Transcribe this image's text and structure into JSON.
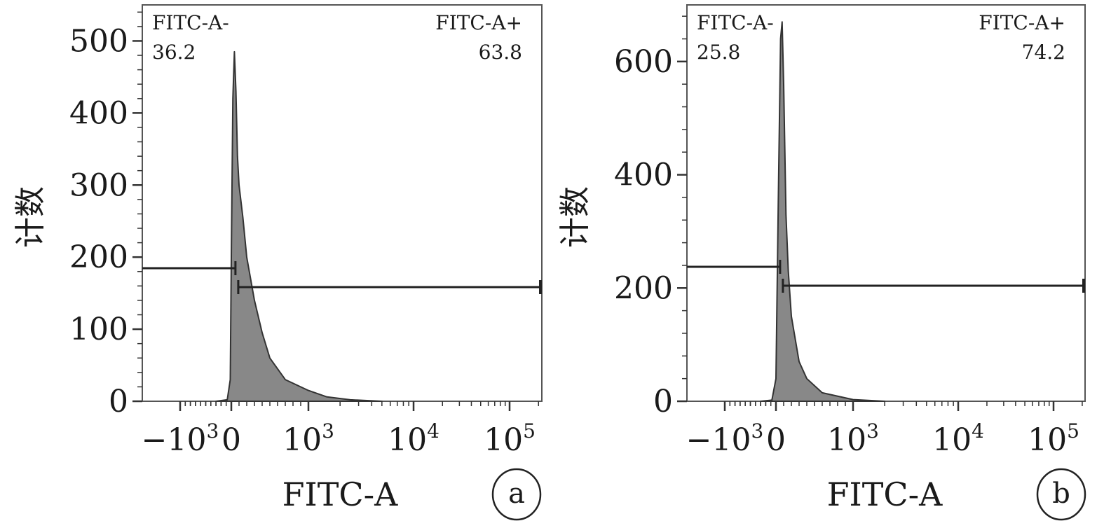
{
  "chart_data": [
    {
      "type": "histogram",
      "panel": "a",
      "xlabel": "FITC-A",
      "ylabel": "计数",
      "x_scale": "biexponential",
      "x_ticks": [
        {
          "value": -1000,
          "base": "−10",
          "exp": "3"
        },
        {
          "value": 0,
          "base": "0",
          "exp": ""
        },
        {
          "value": 1000,
          "base": "10",
          "exp": "3"
        },
        {
          "value": 10000,
          "base": "10",
          "exp": "4"
        },
        {
          "value": 100000,
          "base": "10",
          "exp": "5"
        }
      ],
      "y_ticks": [
        "0",
        "100",
        "200",
        "300",
        "400",
        "500"
      ],
      "ylim": [
        0,
        550
      ],
      "gates": [
        {
          "name": "FITC-A-",
          "percent": "36.2",
          "side": "left",
          "position": "top-left"
        },
        {
          "name": "FITC-A+",
          "percent": "63.8",
          "side": "right",
          "position": "top-right"
        }
      ],
      "gate_boundary": 90,
      "histogram": [
        [
          -300,
          0
        ],
        [
          -80,
          2
        ],
        [
          -20,
          30
        ],
        [
          0,
          200
        ],
        [
          20,
          420
        ],
        [
          40,
          485
        ],
        [
          60,
          430
        ],
        [
          80,
          340
        ],
        [
          100,
          300
        ],
        [
          150,
          255
        ],
        [
          200,
          200
        ],
        [
          300,
          140
        ],
        [
          400,
          95
        ],
        [
          500,
          60
        ],
        [
          700,
          30
        ],
        [
          1000,
          15
        ],
        [
          1500,
          6
        ],
        [
          2500,
          2
        ],
        [
          5000,
          0
        ]
      ]
    },
    {
      "type": "histogram",
      "panel": "b",
      "xlabel": "FITC-A",
      "ylabel": "计数",
      "x_scale": "biexponential",
      "x_ticks": [
        {
          "value": -1000,
          "base": "−10",
          "exp": "3"
        },
        {
          "value": 0,
          "base": "0",
          "exp": ""
        },
        {
          "value": 1000,
          "base": "10",
          "exp": "3"
        },
        {
          "value": 10000,
          "base": "10",
          "exp": "4"
        },
        {
          "value": 100000,
          "base": "10",
          "exp": "5"
        }
      ],
      "y_ticks": [
        "0",
        "200",
        "400",
        "600"
      ],
      "ylim": [
        0,
        700
      ],
      "gates": [
        {
          "name": "FITC-A-",
          "percent": "25.8",
          "side": "left",
          "position": "top-left"
        },
        {
          "name": "FITC-A+",
          "percent": "74.2",
          "side": "right",
          "position": "top-right"
        }
      ],
      "gate_boundary": 90,
      "histogram": [
        [
          -300,
          0
        ],
        [
          -80,
          2
        ],
        [
          0,
          40
        ],
        [
          30,
          350
        ],
        [
          60,
          640
        ],
        [
          80,
          670
        ],
        [
          100,
          560
        ],
        [
          130,
          330
        ],
        [
          160,
          230
        ],
        [
          200,
          150
        ],
        [
          300,
          70
        ],
        [
          400,
          40
        ],
        [
          600,
          15
        ],
        [
          1000,
          3
        ],
        [
          2000,
          0
        ]
      ]
    }
  ]
}
